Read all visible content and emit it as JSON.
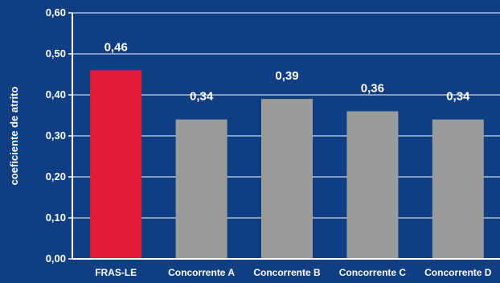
{
  "chart_data": {
    "type": "bar",
    "title": "",
    "xlabel": "",
    "ylabel": "coeficiente de atrito",
    "categories": [
      "FRAS-LE",
      "Concorrente A",
      "Concorrente B",
      "Concorrente C",
      "Concorrente D"
    ],
    "values": [
      0.46,
      0.34,
      0.39,
      0.36,
      0.34
    ],
    "value_labels": [
      "0,46",
      "0,34",
      "0,39",
      "0,36",
      "0,34"
    ],
    "yticks": [
      0.0,
      0.1,
      0.2,
      0.3,
      0.4,
      0.5,
      0.6
    ],
    "ytick_labels": [
      "0,00",
      "0,10",
      "0,20",
      "0,30",
      "0,40",
      "0,50",
      "0,60"
    ],
    "ylim": [
      0,
      0.6
    ],
    "grid": true,
    "legend": "none",
    "colors": {
      "background": "#0f3e82",
      "bars": [
        "#e31b35",
        "#9b9b99",
        "#9b9b99",
        "#9b9b99",
        "#9b9b99"
      ],
      "gridlines": "#ffffff",
      "axis": "#ffffff",
      "text": "#ffffff"
    }
  }
}
